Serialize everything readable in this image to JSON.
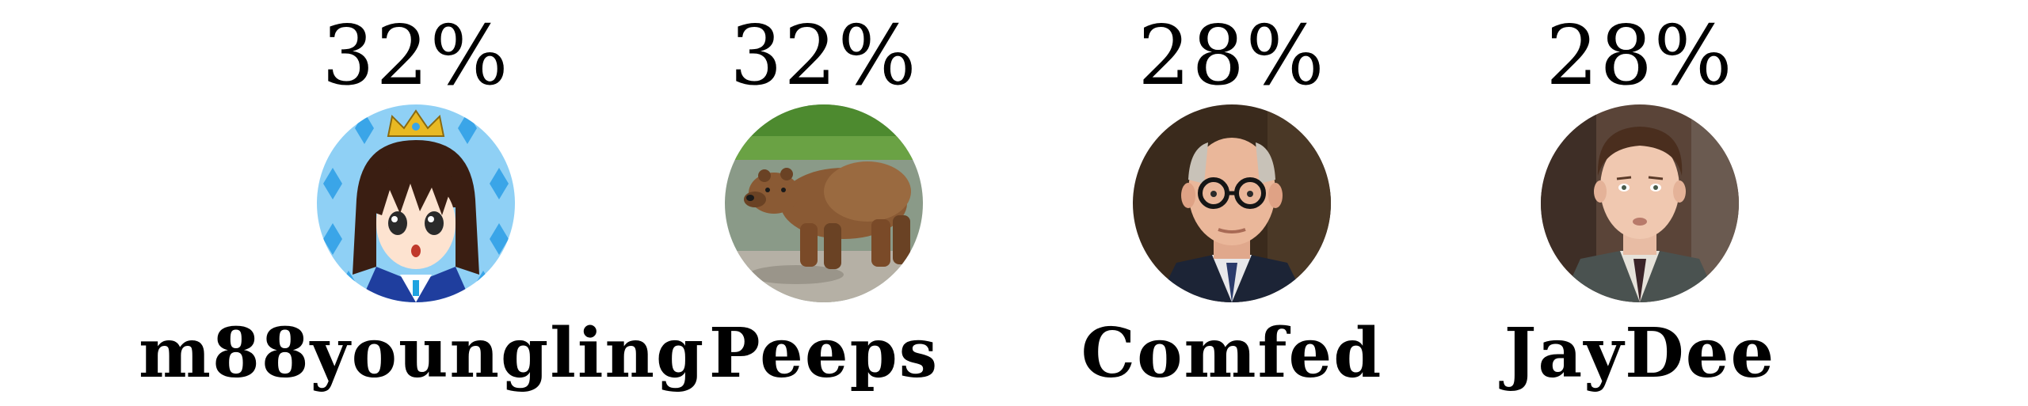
{
  "players": [
    {
      "percent": "32%",
      "name": "m88youngling",
      "avatar_icon": "anime-girl-crown-avatar"
    },
    {
      "percent": "32%",
      "name": "Peeps",
      "avatar_icon": "brown-bear-avatar"
    },
    {
      "percent": "28%",
      "name": "Comfed",
      "avatar_icon": "man-glasses-avatar"
    },
    {
      "percent": "28%",
      "name": "JayDee",
      "avatar_icon": "man-suit-avatar"
    }
  ],
  "colors": {
    "text": "#000000",
    "background": "#ffffff"
  }
}
